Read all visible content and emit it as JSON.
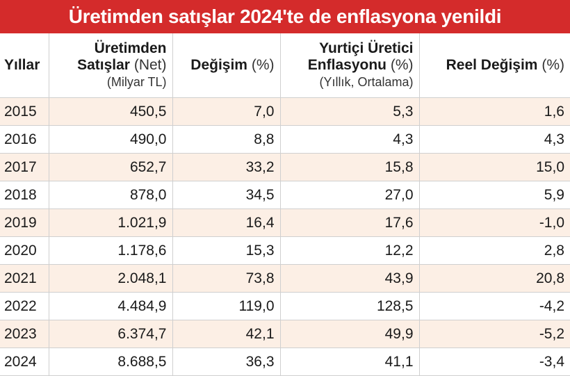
{
  "title": "Üretimden satışlar 2024'te de enflasyona yenildi",
  "colors": {
    "banner": "#d42b2b",
    "row_alt": "#fcefe5"
  },
  "headers": {
    "year": {
      "bold": "Yıllar"
    },
    "sales": {
      "line1": "Üretimden",
      "line2_bold": "Satışlar",
      "line2_light": "(Net)",
      "line3": "(Milyar TL)"
    },
    "change": {
      "bold": "Değişim",
      "light": "(%)"
    },
    "ppi": {
      "line1": "Yurtiçi Üretici",
      "line2_bold": "Enflasyonu",
      "line2_light": "(%)",
      "line3": "(Yıllık, Ortalama)"
    },
    "real": {
      "bold": "Reel Değişim",
      "light": "(%)"
    }
  },
  "chart_data": {
    "type": "table",
    "title": "Üretimden satışlar 2024'te de enflasyona yenildi",
    "columns": [
      "Yıllar",
      "Üretimden Satışlar (Net) (Milyar TL)",
      "Değişim (%)",
      "Yurtiçi Üretici Enflasyonu (%) (Yıllık, Ortalama)",
      "Reel Değişim (%)"
    ],
    "rows": [
      [
        "2015",
        "450,5",
        "7,0",
        "5,3",
        "1,6"
      ],
      [
        "2016",
        "490,0",
        "8,8",
        "4,3",
        "4,3"
      ],
      [
        "2017",
        "652,7",
        "33,2",
        "15,8",
        "15,0"
      ],
      [
        "2018",
        "878,0",
        "34,5",
        "27,0",
        "5,9"
      ],
      [
        "2019",
        "1.021,9",
        "16,4",
        "17,6",
        "-1,0"
      ],
      [
        "2020",
        "1.178,6",
        "15,3",
        "12,2",
        "2,8"
      ],
      [
        "2021",
        "2.048,1",
        "73,8",
        "43,9",
        "20,8"
      ],
      [
        "2022",
        "4.484,9",
        "119,0",
        "128,5",
        "-4,2"
      ],
      [
        "2023",
        "6.374,7",
        "42,1",
        "49,9",
        "-5,2"
      ],
      [
        "2024",
        "8.688,5",
        "36,3",
        "41,1",
        "-3,4"
      ]
    ]
  }
}
